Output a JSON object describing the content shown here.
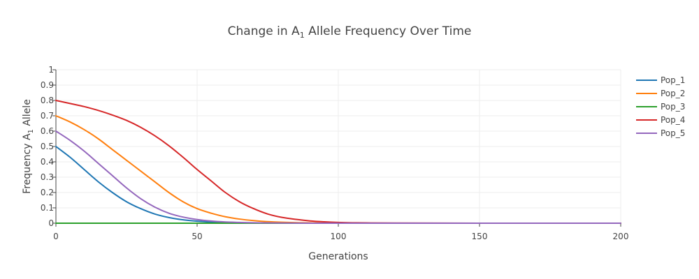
{
  "chart_data": {
    "type": "line",
    "title": "Change in A₁ Allele Frequency Over Time",
    "title_main": "Change in A",
    "title_sub": "1",
    "title_rest": " Allele Frequency Over Time",
    "xlabel": "Generations",
    "ylabel": "Frequency A₁ Allele",
    "ylabel_main": "Frequency A",
    "ylabel_sub": "1",
    "ylabel_rest": " Allele",
    "xlim": [
      0,
      200
    ],
    "ylim": [
      0,
      1
    ],
    "xticks": [
      0,
      50,
      100,
      150,
      200
    ],
    "yticks": [
      0,
      0.1,
      0.2,
      0.3,
      0.4,
      0.5,
      0.6,
      0.7,
      0.8,
      0.9,
      1
    ],
    "ytick_labels": [
      "0",
      "0.1",
      "0.2",
      "0.3",
      "0.4",
      "0.5",
      "0.6",
      "0.7",
      "0.8",
      "0.9",
      "1"
    ],
    "xtick_labels": [
      "0",
      "50",
      "100",
      "150",
      "200"
    ],
    "grid": true,
    "legend_position": "right",
    "series": [
      {
        "name": "Pop_1",
        "color": "#1f77b4",
        "x": [
          0,
          5,
          10,
          15,
          20,
          25,
          30,
          35,
          40,
          45,
          50,
          55,
          60,
          65,
          70,
          80,
          90,
          100,
          120,
          150,
          200
        ],
        "y": [
          0.5,
          0.43,
          0.35,
          0.27,
          0.2,
          0.14,
          0.095,
          0.06,
          0.037,
          0.022,
          0.013,
          0.008,
          0.005,
          0.003,
          0.002,
          0.001,
          0,
          0,
          0,
          0,
          0
        ]
      },
      {
        "name": "Pop_2",
        "color": "#ff7f0e",
        "x": [
          0,
          5,
          10,
          15,
          20,
          25,
          30,
          35,
          40,
          45,
          50,
          55,
          60,
          65,
          70,
          75,
          80,
          90,
          100,
          120,
          150,
          200
        ],
        "y": [
          0.7,
          0.66,
          0.61,
          0.55,
          0.48,
          0.41,
          0.34,
          0.27,
          0.2,
          0.14,
          0.095,
          0.065,
          0.042,
          0.027,
          0.017,
          0.01,
          0.006,
          0.002,
          0.001,
          0,
          0,
          0
        ]
      },
      {
        "name": "Pop_3",
        "color": "#2ca02c",
        "x": [
          0,
          50,
          100,
          150,
          200
        ],
        "y": [
          0,
          0,
          0,
          0,
          0
        ]
      },
      {
        "name": "Pop_4",
        "color": "#d62728",
        "x": [
          0,
          5,
          10,
          15,
          20,
          25,
          30,
          35,
          40,
          45,
          50,
          55,
          60,
          65,
          70,
          75,
          80,
          85,
          90,
          95,
          100,
          105,
          110,
          120,
          150,
          200
        ],
        "y": [
          0.8,
          0.78,
          0.76,
          0.735,
          0.705,
          0.67,
          0.625,
          0.57,
          0.505,
          0.43,
          0.35,
          0.275,
          0.2,
          0.14,
          0.095,
          0.06,
          0.038,
          0.025,
          0.015,
          0.009,
          0.005,
          0.003,
          0.002,
          0.001,
          0,
          0
        ]
      },
      {
        "name": "Pop_5",
        "color": "#9467bd",
        "x": [
          0,
          5,
          10,
          15,
          20,
          25,
          30,
          35,
          40,
          45,
          50,
          55,
          60,
          65,
          70,
          80,
          90,
          100,
          150,
          200
        ],
        "y": [
          0.6,
          0.54,
          0.47,
          0.39,
          0.31,
          0.23,
          0.16,
          0.105,
          0.065,
          0.04,
          0.024,
          0.014,
          0.008,
          0.005,
          0.003,
          0.001,
          0,
          0,
          0,
          0
        ]
      }
    ]
  }
}
